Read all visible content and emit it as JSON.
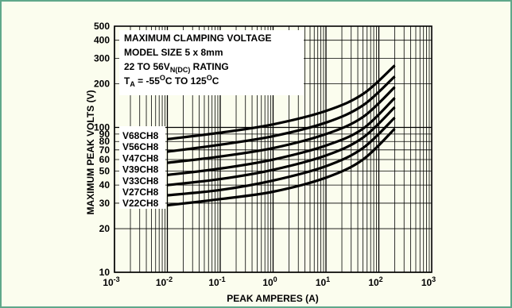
{
  "colors": {
    "frame": "#5fa88a",
    "background": "#fbfdee",
    "grid": "#000000",
    "curve": "#000000"
  },
  "chart_data": {
    "type": "line",
    "xscale": "log",
    "yscale": "log",
    "xlim": [
      0.001,
      1000
    ],
    "ylim": [
      10,
      500
    ],
    "xlabel": "PEAK AMPERES (A)",
    "ylabel": "MAXIMUM PEAK VOLTS (V)",
    "xticks": [
      {
        "value": 0.001,
        "base": "10",
        "exp": "-3"
      },
      {
        "value": 0.01,
        "base": "10",
        "exp": "-2"
      },
      {
        "value": 0.1,
        "base": "10",
        "exp": "-1"
      },
      {
        "value": 1,
        "base": "10",
        "exp": "0"
      },
      {
        "value": 10,
        "base": "10",
        "exp": "1"
      },
      {
        "value": 100,
        "base": "10",
        "exp": "2"
      },
      {
        "value": 1000,
        "base": "10",
        "exp": "3"
      }
    ],
    "yticks": [
      {
        "value": 10,
        "label": "10"
      },
      {
        "value": 20,
        "label": "20"
      },
      {
        "value": 30,
        "label": "30"
      },
      {
        "value": 40,
        "label": "40"
      },
      {
        "value": 50,
        "label": "50"
      },
      {
        "value": 60,
        "label": "60"
      },
      {
        "value": 70,
        "label": "70"
      },
      {
        "value": 80,
        "label": "80"
      },
      {
        "value": 90,
        "label": "90"
      },
      {
        "value": 100,
        "label": "100"
      },
      {
        "value": 200,
        "label": "200"
      },
      {
        "value": 300,
        "label": "300"
      },
      {
        "value": 400,
        "label": "400"
      },
      {
        "value": 500,
        "label": "500"
      }
    ],
    "annotation": {
      "line1": "MAXIMUM CLAMPING VOLTAGE",
      "line2": "MODEL SIZE 5 x 8mm",
      "line3_pre": "22 TO 56V",
      "line3_sub": "N(DC)",
      "line3_post": " RATING",
      "line4_t": "T",
      "line4_tsub": "A",
      "line4_a": " = -55",
      "line4_o1": "O",
      "line4_b": "C TO 125",
      "line4_o2": "O",
      "line4_c": "C"
    },
    "series": [
      {
        "name": "V68CH8",
        "x": [
          0.01,
          0.1,
          1,
          10,
          50,
          200
        ],
        "y": [
          83,
          92,
          105,
          130,
          170,
          268
        ]
      },
      {
        "name": "V56CH8",
        "x": [
          0.01,
          0.1,
          1,
          10,
          50,
          200
        ],
        "y": [
          68,
          76,
          87,
          108,
          142,
          225
        ]
      },
      {
        "name": "V47CH8",
        "x": [
          0.01,
          0.1,
          1,
          10,
          50,
          200
        ],
        "y": [
          57,
          63,
          72,
          90,
          118,
          190
        ]
      },
      {
        "name": "V39CH8",
        "x": [
          0.01,
          0.1,
          1,
          10,
          50,
          200
        ],
        "y": [
          47,
          52,
          60,
          75,
          98,
          160
        ]
      },
      {
        "name": "V33CH8",
        "x": [
          0.01,
          0.1,
          1,
          10,
          50,
          200
        ],
        "y": [
          40,
          44,
          51,
          64,
          85,
          138
        ]
      },
      {
        "name": "V27CH8",
        "x": [
          0.01,
          0.1,
          1,
          10,
          50,
          200
        ],
        "y": [
          34,
          37,
          43,
          54,
          72,
          117
        ]
      },
      {
        "name": "V22CH8",
        "x": [
          0.01,
          0.1,
          1,
          10,
          50,
          200
        ],
        "y": [
          29,
          32,
          36,
          45,
          60,
          98
        ]
      }
    ]
  }
}
